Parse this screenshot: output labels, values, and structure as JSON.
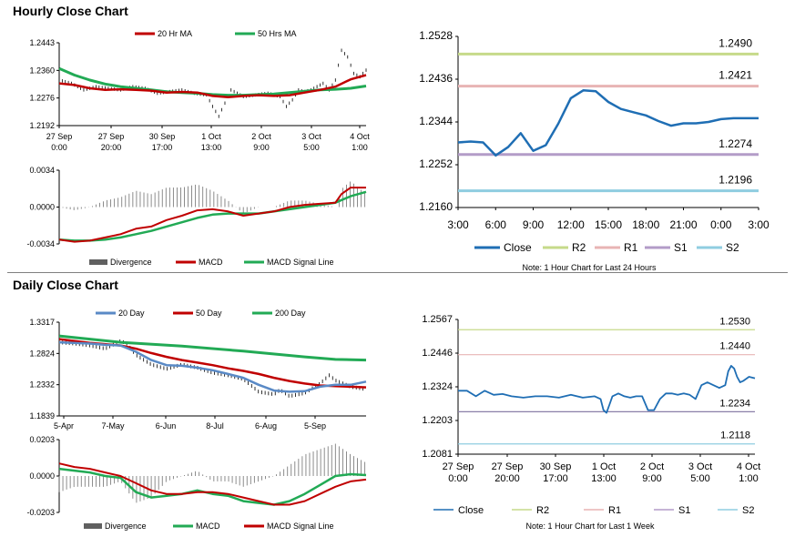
{
  "hourly": {
    "title": "Hourly Close Chart",
    "colors": {
      "ma20": "#c00000",
      "ma50": "#22aa55",
      "close": "#1f6eb4",
      "r2": "#c6da8a",
      "r1": "#e8b4b4",
      "s1": "#b39cc8",
      "s2": "#8fcde0",
      "divergence": "#808080"
    }
  },
  "daily": {
    "title": "Daily Close Chart"
  },
  "chart_data": [
    {
      "id": "hourly-price",
      "type": "line",
      "title": "Hourly Close Chart",
      "legend": [
        "20 Hr MA",
        "50 Hrs MA"
      ],
      "x_ticks": [
        "27 Sep\n0:00",
        "27 Sep\n20:00",
        "30 Sep\n17:00",
        "1 Oct\n13:00",
        "2 Oct\n9:00",
        "3 Oct\n5:00",
        "4 Oct\n1:00"
      ],
      "y_ticks": [
        "1.2443",
        "1.2360",
        "1.2276",
        "1.2192"
      ],
      "ylim": [
        1.2192,
        1.2443
      ],
      "series": [
        {
          "name": "Close",
          "x": [
            0,
            4,
            8,
            12,
            16,
            20,
            24,
            28,
            32,
            36,
            40,
            44,
            48,
            50,
            52,
            54,
            56,
            58,
            60,
            64,
            68,
            72,
            74,
            76,
            78,
            80,
            82,
            84,
            86,
            88,
            90,
            92,
            94,
            96,
            98,
            100
          ],
          "values": [
            1.233,
            1.232,
            1.23,
            1.231,
            1.2305,
            1.23,
            1.231,
            1.2305,
            1.229,
            1.2295,
            1.23,
            1.229,
            1.2285,
            1.225,
            1.222,
            1.226,
            1.23,
            1.229,
            1.228,
            1.2285,
            1.229,
            1.228,
            1.225,
            1.227,
            1.23,
            1.2295,
            1.23,
            1.231,
            1.232,
            1.23,
            1.233,
            1.242,
            1.24,
            1.235,
            1.234,
            1.236
          ]
        },
        {
          "name": "20 Hr MA",
          "x": [
            0,
            5,
            10,
            15,
            20,
            25,
            30,
            35,
            40,
            45,
            50,
            55,
            60,
            65,
            70,
            75,
            80,
            85,
            90,
            95,
            100
          ],
          "values": [
            1.232,
            1.2315,
            1.2305,
            1.23,
            1.2302,
            1.23,
            1.2298,
            1.2292,
            1.2294,
            1.2292,
            1.2282,
            1.2278,
            1.2282,
            1.2284,
            1.2282,
            1.2284,
            1.2292,
            1.23,
            1.231,
            1.2332,
            1.2345
          ]
        },
        {
          "name": "50 Hrs MA",
          "x": [
            0,
            5,
            10,
            15,
            20,
            25,
            30,
            35,
            40,
            45,
            50,
            55,
            60,
            65,
            70,
            75,
            80,
            85,
            90,
            95,
            100
          ],
          "values": [
            1.2365,
            1.2345,
            1.233,
            1.2318,
            1.231,
            1.2305,
            1.23,
            1.2295,
            1.2292,
            1.229,
            1.2286,
            1.2284,
            1.2284,
            1.2286,
            1.2288,
            1.2292,
            1.2296,
            1.23,
            1.2302,
            1.2305,
            1.2312
          ]
        }
      ]
    },
    {
      "id": "hourly-macd",
      "type": "line",
      "legend": [
        "Divergence",
        "MACD",
        "MACD Signal Line"
      ],
      "y_ticks": [
        "0.0034",
        "0.0000",
        "-0.0034"
      ],
      "ylim": [
        -0.0034,
        0.0034
      ],
      "series": [
        {
          "name": "MACD",
          "x": [
            0,
            5,
            10,
            15,
            20,
            25,
            30,
            35,
            40,
            45,
            50,
            55,
            60,
            65,
            70,
            75,
            80,
            85,
            90,
            92,
            95,
            100
          ],
          "values": [
            -0.003,
            -0.0032,
            -0.0031,
            -0.0028,
            -0.0025,
            -0.002,
            -0.0018,
            -0.0012,
            -0.0008,
            -0.0003,
            -0.0002,
            -0.0004,
            -0.0008,
            -0.0006,
            -0.0004,
            0.0,
            0.0002,
            0.0003,
            0.0004,
            0.0012,
            0.0018,
            0.0018
          ]
        },
        {
          "name": "MACD Signal Line",
          "x": [
            0,
            5,
            10,
            15,
            20,
            25,
            30,
            35,
            40,
            45,
            50,
            55,
            60,
            65,
            70,
            75,
            80,
            85,
            90,
            95,
            100
          ],
          "values": [
            -0.003,
            -0.0031,
            -0.0031,
            -0.003,
            -0.0028,
            -0.0025,
            -0.0022,
            -0.0018,
            -0.0014,
            -0.001,
            -0.0007,
            -0.0006,
            -0.0006,
            -0.0006,
            -0.0004,
            -0.0002,
            0.0,
            0.0002,
            0.0004,
            0.001,
            0.0014
          ]
        }
      ]
    },
    {
      "id": "hourly-pivot",
      "type": "line",
      "note": "Note: 1 Hour Chart for Last 24 Hours",
      "legend": [
        "Close",
        "R2",
        "R1",
        "S1",
        "S2"
      ],
      "x_ticks": [
        "3:00",
        "6:00",
        "9:00",
        "12:00",
        "15:00",
        "18:00",
        "21:00",
        "0:00",
        "3:00"
      ],
      "y_ticks": [
        "1.2528",
        "1.2436",
        "1.2344",
        "1.2252",
        "1.2160"
      ],
      "ylim": [
        1.216,
        1.2528
      ],
      "levels": [
        {
          "name": "R2",
          "value": 1.249,
          "label": "1.2490"
        },
        {
          "name": "R1",
          "value": 1.2421,
          "label": "1.2421"
        },
        {
          "name": "S1",
          "value": 1.2274,
          "label": "1.2274"
        },
        {
          "name": "S2",
          "value": 1.2196,
          "label": "1.2196"
        }
      ],
      "series": [
        {
          "name": "Close",
          "x": [
            0,
            1,
            2,
            3,
            4,
            5,
            6,
            7,
            8,
            9,
            10,
            11,
            12,
            13,
            14,
            15,
            16,
            17,
            18,
            19,
            20,
            21,
            22,
            23,
            24
          ],
          "values": [
            1.23,
            1.2302,
            1.23,
            1.2272,
            1.229,
            1.232,
            1.2282,
            1.2294,
            1.234,
            1.2395,
            1.2412,
            1.241,
            1.2387,
            1.2372,
            1.2365,
            1.2358,
            1.2346,
            1.2336,
            1.2341,
            1.2341,
            1.2344,
            1.235,
            1.2352,
            1.2352,
            1.2352
          ]
        }
      ]
    },
    {
      "id": "daily-price",
      "type": "line",
      "title": "Daily Close Chart",
      "legend": [
        "20 Day",
        "50 Day",
        "200 Day"
      ],
      "x_ticks": [
        "5-Apr",
        "7-May",
        "6-Jun",
        "8-Jul",
        "6-Aug",
        "5-Sep"
      ],
      "y_ticks": [
        "1.3317",
        "1.2824",
        "1.2332",
        "1.1839"
      ],
      "ylim": [
        1.1839,
        1.3317
      ],
      "series": [
        {
          "name": "Close",
          "x": [
            0,
            5,
            10,
            15,
            20,
            22,
            25,
            30,
            35,
            40,
            45,
            50,
            55,
            60,
            65,
            70,
            72,
            75,
            80,
            85,
            88,
            90,
            95,
            100
          ],
          "values": [
            1.3,
            1.298,
            1.295,
            1.29,
            1.302,
            1.298,
            1.28,
            1.265,
            1.258,
            1.265,
            1.26,
            1.252,
            1.248,
            1.242,
            1.222,
            1.218,
            1.225,
            1.215,
            1.22,
            1.235,
            1.248,
            1.24,
            1.23,
            1.226
          ]
        },
        {
          "name": "20 Day",
          "x": [
            0,
            10,
            15,
            20,
            25,
            30,
            35,
            40,
            45,
            50,
            55,
            60,
            65,
            70,
            75,
            80,
            85,
            90,
            95,
            100
          ],
          "values": [
            1.3,
            1.298,
            1.296,
            1.295,
            1.285,
            1.272,
            1.264,
            1.263,
            1.26,
            1.256,
            1.25,
            1.244,
            1.233,
            1.224,
            1.222,
            1.223,
            1.23,
            1.233,
            1.233,
            1.238
          ]
        },
        {
          "name": "50 Day",
          "x": [
            0,
            10,
            20,
            25,
            30,
            35,
            40,
            45,
            50,
            55,
            60,
            65,
            70,
            75,
            80,
            85,
            90,
            95,
            100
          ],
          "values": [
            1.305,
            1.299,
            1.295,
            1.29,
            1.283,
            1.277,
            1.272,
            1.268,
            1.264,
            1.259,
            1.255,
            1.25,
            1.244,
            1.239,
            1.235,
            1.232,
            1.231,
            1.23,
            1.229
          ]
        },
        {
          "name": "200 Day",
          "x": [
            0,
            20,
            40,
            60,
            80,
            90,
            100
          ],
          "values": [
            1.31,
            1.3,
            1.294,
            1.286,
            1.277,
            1.273,
            1.272
          ]
        }
      ]
    },
    {
      "id": "daily-macd",
      "type": "line",
      "legend": [
        "Divergence",
        "MACD",
        "MACD Signal Line"
      ],
      "y_ticks": [
        "0.0203",
        "0.0000",
        "-0.0203"
      ],
      "ylim": [
        -0.0203,
        0.0203
      ],
      "series": [
        {
          "name": "MACD",
          "x": [
            0,
            5,
            10,
            15,
            20,
            25,
            30,
            35,
            40,
            45,
            50,
            55,
            60,
            65,
            70,
            75,
            80,
            85,
            90,
            95,
            100
          ],
          "values": [
            0.004,
            0.003,
            0.002,
            0.0,
            -0.001,
            -0.009,
            -0.012,
            -0.011,
            -0.01,
            -0.008,
            -0.01,
            -0.011,
            -0.014,
            -0.015,
            -0.016,
            -0.014,
            -0.01,
            -0.005,
            0.0,
            0.001,
            0.0005
          ]
        },
        {
          "name": "MACD Signal Line",
          "x": [
            0,
            5,
            10,
            15,
            20,
            25,
            30,
            35,
            40,
            45,
            50,
            55,
            60,
            65,
            70,
            75,
            80,
            85,
            90,
            95,
            100
          ],
          "values": [
            0.007,
            0.005,
            0.004,
            0.002,
            0.0,
            -0.004,
            -0.008,
            -0.01,
            -0.01,
            -0.009,
            -0.009,
            -0.01,
            -0.012,
            -0.014,
            -0.016,
            -0.016,
            -0.014,
            -0.01,
            -0.006,
            -0.003,
            -0.002
          ]
        }
      ]
    },
    {
      "id": "daily-pivot",
      "type": "line",
      "note": "Note: 1 Hour Chart for Last 1 Week",
      "legend": [
        "Close",
        "R2",
        "R1",
        "S1",
        "S2"
      ],
      "x_ticks": [
        "27 Sep\n0:00",
        "27 Sep\n20:00",
        "30 Sep\n17:00",
        "1 Oct\n13:00",
        "2 Oct\n9:00",
        "3 Oct\n5:00",
        "4 Oct\n1:00"
      ],
      "y_ticks": [
        "1.2567",
        "1.2446",
        "1.2324",
        "1.2203",
        "1.2081"
      ],
      "ylim": [
        1.2081,
        1.2567
      ],
      "levels": [
        {
          "name": "R2",
          "value": 1.253,
          "label": "1.2530"
        },
        {
          "name": "R1",
          "value": 1.244,
          "label": "1.2440"
        },
        {
          "name": "S1",
          "value": 1.2234,
          "label": "1.2234"
        },
        {
          "name": "S2",
          "value": 1.2118,
          "label": "1.2118"
        }
      ],
      "series": [
        {
          "name": "Close",
          "x": [
            0,
            3,
            6,
            9,
            12,
            15,
            18,
            22,
            26,
            30,
            34,
            38,
            42,
            46,
            48,
            49,
            50,
            51,
            52,
            54,
            56,
            58,
            60,
            62,
            64,
            66,
            68,
            70,
            72,
            74,
            76,
            78,
            80,
            82,
            84,
            86,
            88,
            90,
            91,
            92,
            93,
            94,
            95,
            96,
            98,
            100
          ],
          "values": [
            1.231,
            1.231,
            1.229,
            1.231,
            1.2295,
            1.2298,
            1.229,
            1.2285,
            1.229,
            1.229,
            1.2285,
            1.2295,
            1.2285,
            1.229,
            1.228,
            1.224,
            1.223,
            1.226,
            1.229,
            1.23,
            1.229,
            1.2285,
            1.229,
            1.229,
            1.224,
            1.224,
            1.228,
            1.23,
            1.23,
            1.2295,
            1.23,
            1.2295,
            1.228,
            1.233,
            1.234,
            1.233,
            1.232,
            1.233,
            1.238,
            1.24,
            1.239,
            1.236,
            1.234,
            1.2345,
            1.236,
            1.2355
          ]
        }
      ]
    }
  ]
}
